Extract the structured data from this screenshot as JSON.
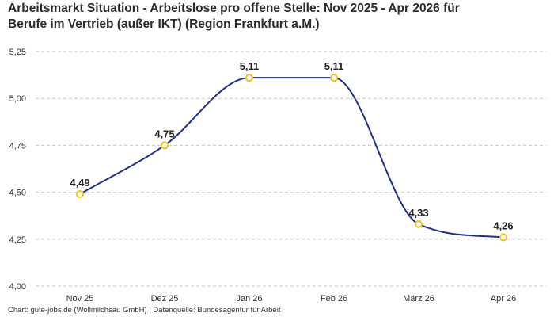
{
  "title_lines": [
    "Arbeitsmarkt Situation - Arbeitslose pro offene Stelle: Nov 2025 - Apr 2026 für",
    "Berufe im Vertrieb (außer IKT) (Region Frankfurt a.M.)"
  ],
  "footer": "Chart: gute-jobs.de (Wollmilchsau GmbH) | Datenquelle: Bundesagentur für Arbeit",
  "chart_data": {
    "type": "line",
    "title": "Arbeitsmarkt Situation - Arbeitslose pro offene Stelle: Nov 2025 - Apr 2026 für Berufe im Vertrieb (außer IKT) (Region Frankfurt a.M.)",
    "categories": [
      "Nov 25",
      "Dez 25",
      "Jan 26",
      "Feb 26",
      "März 26",
      "Apr 26"
    ],
    "series": [
      {
        "values": [
          4.49,
          4.75,
          5.11,
          5.11,
          4.33,
          4.26
        ],
        "data_labels": [
          "4,49",
          "4,75",
          "5,11",
          "5,11",
          "4,33",
          "4,26"
        ]
      }
    ],
    "y_ticks": [
      4.0,
      4.25,
      4.5,
      4.75,
      5.0,
      5.25
    ],
    "y_tick_labels": [
      "4,00",
      "4,25",
      "4,50",
      "4,75",
      "5,00",
      "5,25"
    ],
    "ylim": [
      4.0,
      5.25
    ],
    "xlabel": "",
    "ylabel": "",
    "grid": "horizontal dashed",
    "legend": "none",
    "line_color": "#1f2f8a",
    "marker_color": "#f2c318",
    "grid_color": "#c8c8c8"
  }
}
